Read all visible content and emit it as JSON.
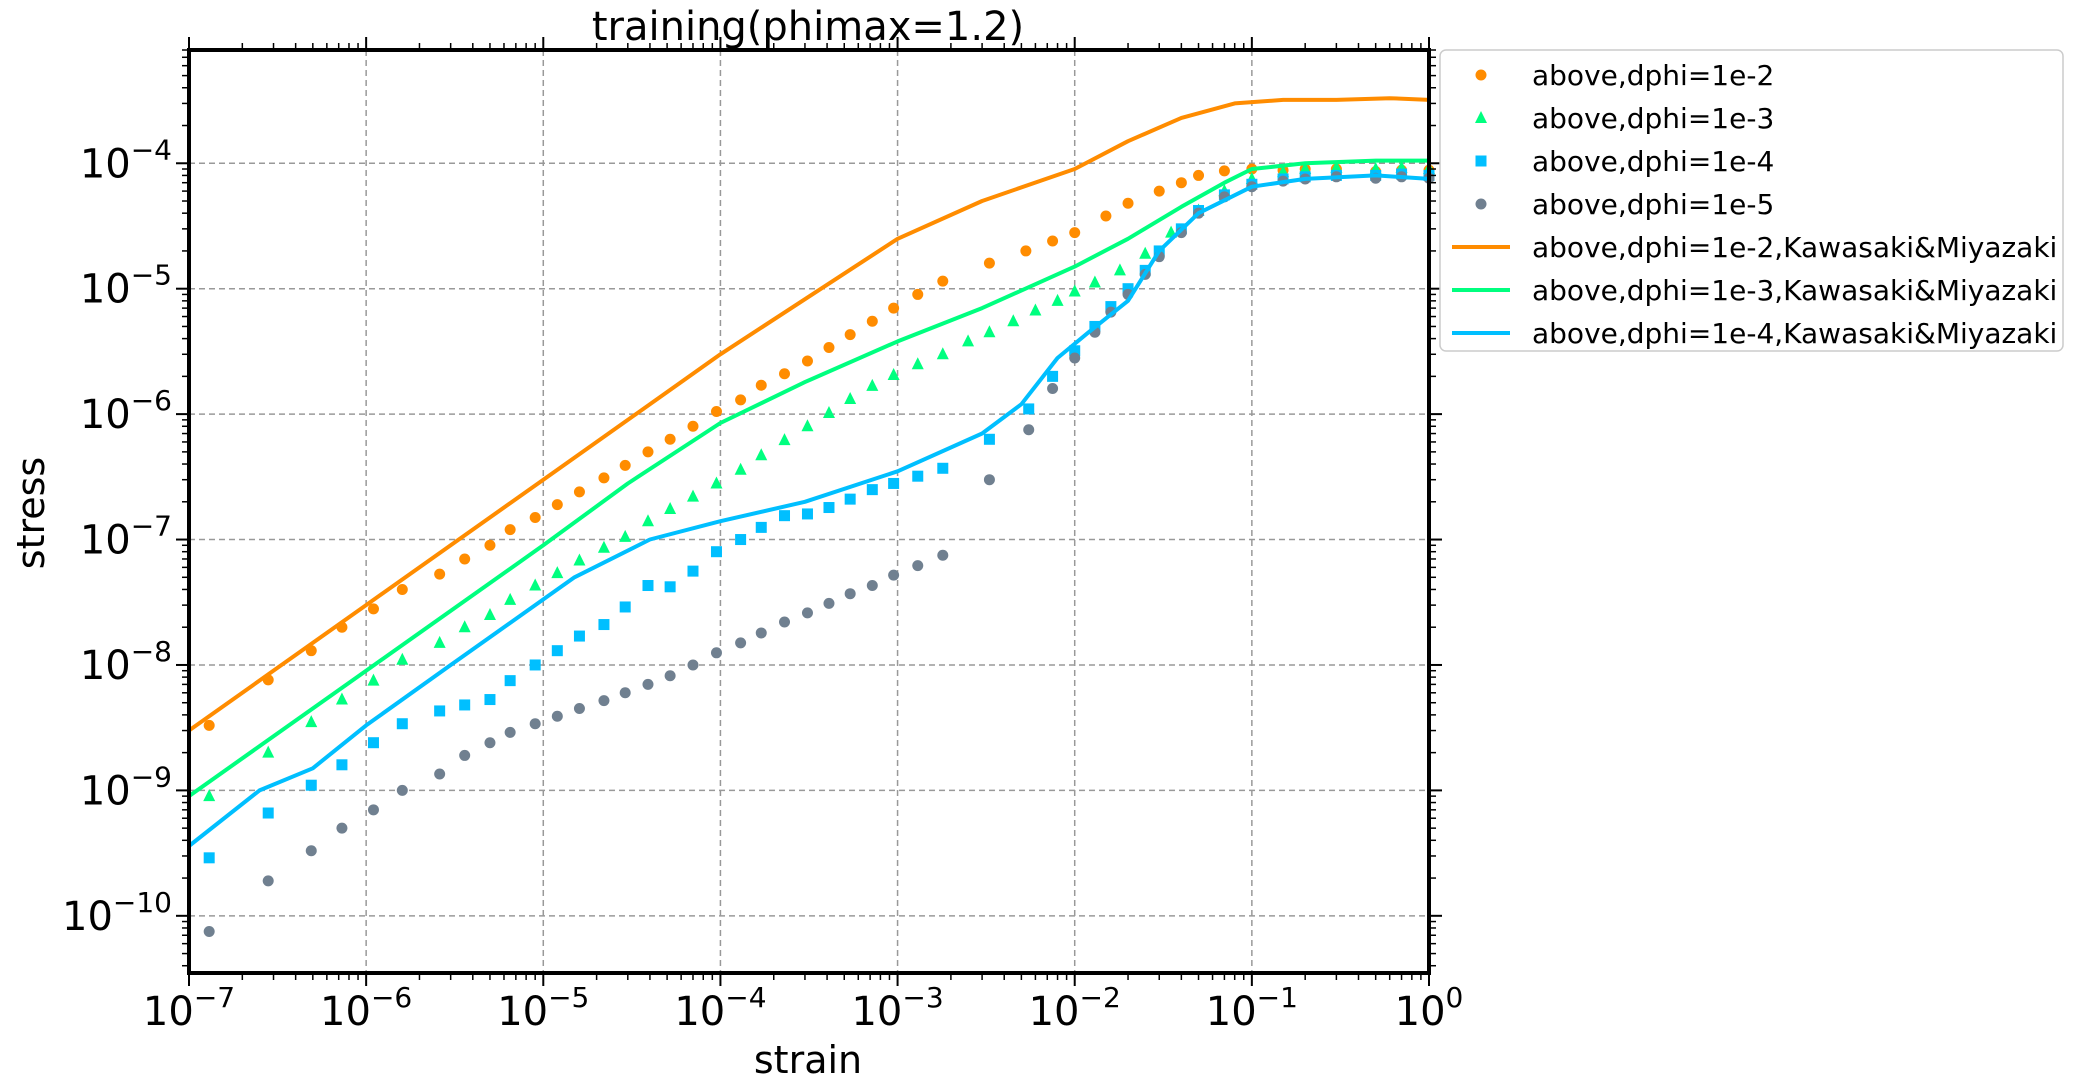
{
  "chart_data": {
    "type": "scatter",
    "title": "training(phimax=1.2)",
    "xlabel": "strain",
    "ylabel": "stress",
    "xscale": "log",
    "yscale": "log",
    "xlim": [
      1e-07,
      1
    ],
    "ylim": [
      3.5e-11,
      0.0008
    ],
    "grid": true,
    "legend_position": "outside-right",
    "x_tick_labels": [
      {
        "base": "10",
        "exp": "−7",
        "value": 1e-07
      },
      {
        "base": "10",
        "exp": "−6",
        "value": 1e-06
      },
      {
        "base": "10",
        "exp": "−5",
        "value": 1e-05
      },
      {
        "base": "10",
        "exp": "−4",
        "value": 0.0001
      },
      {
        "base": "10",
        "exp": "−3",
        "value": 0.001
      },
      {
        "base": "10",
        "exp": "−2",
        "value": 0.01
      },
      {
        "base": "10",
        "exp": "−1",
        "value": 0.1
      },
      {
        "base": "10",
        "exp": "0",
        "value": 1
      }
    ],
    "y_tick_labels": [
      {
        "base": "10",
        "exp": "−10",
        "value": 1e-10
      },
      {
        "base": "10",
        "exp": "−9",
        "value": 1e-09
      },
      {
        "base": "10",
        "exp": "−8",
        "value": 1e-08
      },
      {
        "base": "10",
        "exp": "−7",
        "value": 1e-07
      },
      {
        "base": "10",
        "exp": "−6",
        "value": 1e-06
      },
      {
        "base": "10",
        "exp": "−5",
        "value": 1e-05
      },
      {
        "base": "10",
        "exp": "−4",
        "value": 0.0001
      }
    ],
    "series": [
      {
        "name": "above,dphi=1e-2",
        "kind": "scatter",
        "marker": "circle",
        "color": "#ff8c00",
        "points": [
          [
            1.3e-07,
            3.3e-09
          ],
          [
            2.8e-07,
            7.6e-09
          ],
          [
            4.9e-07,
            1.3e-08
          ],
          [
            7.3e-07,
            2e-08
          ],
          [
            1.1e-06,
            2.8e-08
          ],
          [
            1.6e-06,
            4e-08
          ],
          [
            2.6e-06,
            5.3e-08
          ],
          [
            3.6e-06,
            7e-08
          ],
          [
            5e-06,
            9e-08
          ],
          [
            6.5e-06,
            1.2e-07
          ],
          [
            9e-06,
            1.5e-07
          ],
          [
            1.2e-05,
            1.9e-07
          ],
          [
            1.6e-05,
            2.4e-07
          ],
          [
            2.2e-05,
            3.1e-07
          ],
          [
            2.9e-05,
            3.9e-07
          ],
          [
            3.9e-05,
            5e-07
          ],
          [
            5.2e-05,
            6.3e-07
          ],
          [
            7e-05,
            8e-07
          ],
          [
            9.5e-05,
            1.05e-06
          ],
          [
            0.00013,
            1.3e-06
          ],
          [
            0.00017,
            1.7e-06
          ],
          [
            0.00023,
            2.1e-06
          ],
          [
            0.00031,
            2.65e-06
          ],
          [
            0.00041,
            3.4e-06
          ],
          [
            0.00054,
            4.3e-06
          ],
          [
            0.00072,
            5.5e-06
          ],
          [
            0.00095,
            7e-06
          ],
          [
            0.0013,
            9e-06
          ],
          [
            0.0018,
            1.15e-05
          ],
          [
            0.0033,
            1.6e-05
          ],
          [
            0.0053,
            2e-05
          ],
          [
            0.0075,
            2.4e-05
          ],
          [
            0.01,
            2.8e-05
          ],
          [
            0.015,
            3.8e-05
          ],
          [
            0.02,
            4.8e-05
          ],
          [
            0.03,
            6e-05
          ],
          [
            0.04,
            7e-05
          ],
          [
            0.05,
            8e-05
          ],
          [
            0.07,
            8.7e-05
          ],
          [
            0.1,
            9e-05
          ],
          [
            0.15,
            8.8e-05
          ],
          [
            0.2,
            9e-05
          ],
          [
            0.3,
            9e-05
          ],
          [
            0.5,
            8.6e-05
          ],
          [
            0.7,
            8.8e-05
          ],
          [
            1,
            8.8e-05
          ]
        ]
      },
      {
        "name": "above,dphi=1e-3",
        "kind": "scatter",
        "marker": "triangle",
        "color": "#00ff7f",
        "points": [
          [
            1.3e-07,
            9e-10
          ],
          [
            2.8e-07,
            2e-09
          ],
          [
            4.9e-07,
            3.5e-09
          ],
          [
            7.3e-07,
            5.3e-09
          ],
          [
            1.1e-06,
            7.5e-09
          ],
          [
            1.6e-06,
            1.1e-08
          ],
          [
            2.6e-06,
            1.5e-08
          ],
          [
            3.6e-06,
            2e-08
          ],
          [
            5e-06,
            2.5e-08
          ],
          [
            6.5e-06,
            3.3e-08
          ],
          [
            9e-06,
            4.3e-08
          ],
          [
            1.2e-05,
            5.4e-08
          ],
          [
            1.6e-05,
            6.8e-08
          ],
          [
            2.2e-05,
            8.6e-08
          ],
          [
            2.9e-05,
            1.05e-07
          ],
          [
            3.9e-05,
            1.4e-07
          ],
          [
            5.2e-05,
            1.75e-07
          ],
          [
            7e-05,
            2.2e-07
          ],
          [
            9.5e-05,
            2.8e-07
          ],
          [
            0.00013,
            3.6e-07
          ],
          [
            0.00017,
            4.7e-07
          ],
          [
            0.00023,
            6.2e-07
          ],
          [
            0.00031,
            8e-07
          ],
          [
            0.00041,
            1.02e-06
          ],
          [
            0.00054,
            1.32e-06
          ],
          [
            0.00072,
            1.68e-06
          ],
          [
            0.00095,
            2.05e-06
          ],
          [
            0.0013,
            2.5e-06
          ],
          [
            0.0018,
            3e-06
          ],
          [
            0.0025,
            3.8e-06
          ],
          [
            0.0033,
            4.5e-06
          ],
          [
            0.0045,
            5.5e-06
          ],
          [
            0.006,
            6.7e-06
          ],
          [
            0.008,
            8e-06
          ],
          [
            0.01,
            9.5e-06
          ],
          [
            0.013,
            1.12e-05
          ],
          [
            0.018,
            1.4e-05
          ],
          [
            0.025,
            1.9e-05
          ],
          [
            0.035,
            2.8e-05
          ],
          [
            0.05,
            4.2e-05
          ],
          [
            0.07,
            6e-05
          ],
          [
            0.1,
            7.5e-05
          ],
          [
            0.15,
            8.5e-05
          ],
          [
            0.2,
            9e-05
          ],
          [
            0.3,
            9.2e-05
          ],
          [
            0.5,
            9e-05
          ],
          [
            0.7,
            9.2e-05
          ],
          [
            1,
            9e-05
          ]
        ]
      },
      {
        "name": "above,dphi=1e-4",
        "kind": "scatter",
        "marker": "square",
        "color": "#00bfff",
        "points": [
          [
            1.3e-07,
            2.9e-10
          ],
          [
            2.8e-07,
            6.6e-10
          ],
          [
            4.9e-07,
            1.1e-09
          ],
          [
            7.3e-07,
            1.6e-09
          ],
          [
            1.1e-06,
            2.4e-09
          ],
          [
            1.6e-06,
            3.4e-09
          ],
          [
            2.6e-06,
            4.3e-09
          ],
          [
            3.6e-06,
            4.8e-09
          ],
          [
            5e-06,
            5.3e-09
          ],
          [
            6.5e-06,
            7.5e-09
          ],
          [
            9e-06,
            1e-08
          ],
          [
            1.2e-05,
            1.3e-08
          ],
          [
            1.6e-05,
            1.7e-08
          ],
          [
            2.2e-05,
            2.1e-08
          ],
          [
            2.9e-05,
            2.9e-08
          ],
          [
            3.9e-05,
            4.3e-08
          ],
          [
            5.2e-05,
            4.2e-08
          ],
          [
            7e-05,
            5.6e-08
          ],
          [
            9.5e-05,
            8e-08
          ],
          [
            0.00013,
            1e-07
          ],
          [
            0.00017,
            1.25e-07
          ],
          [
            0.00023,
            1.55e-07
          ],
          [
            0.00031,
            1.6e-07
          ],
          [
            0.00041,
            1.8e-07
          ],
          [
            0.00054,
            2.1e-07
          ],
          [
            0.00072,
            2.5e-07
          ],
          [
            0.00095,
            2.8e-07
          ],
          [
            0.0013,
            3.2e-07
          ],
          [
            0.0018,
            3.7e-07
          ],
          [
            0.0033,
            6.3e-07
          ],
          [
            0.0055,
            1.1e-06
          ],
          [
            0.0075,
            2e-06
          ],
          [
            0.01,
            3.2e-06
          ],
          [
            0.013,
            5e-06
          ],
          [
            0.016,
            7.2e-06
          ],
          [
            0.02,
            1e-05
          ],
          [
            0.025,
            1.4e-05
          ],
          [
            0.03,
            2e-05
          ],
          [
            0.04,
            3e-05
          ],
          [
            0.05,
            4.2e-05
          ],
          [
            0.07,
            5.6e-05
          ],
          [
            0.1,
            6.8e-05
          ],
          [
            0.15,
            7.5e-05
          ],
          [
            0.2,
            7.8e-05
          ],
          [
            0.3,
            8e-05
          ],
          [
            0.5,
            8e-05
          ],
          [
            0.7,
            8.2e-05
          ],
          [
            1,
            8e-05
          ]
        ]
      },
      {
        "name": "above,dphi=1e-5",
        "kind": "scatter",
        "marker": "circle",
        "color": "#708090",
        "points": [
          [
            1.3e-07,
            7.5e-11
          ],
          [
            2.8e-07,
            1.9e-10
          ],
          [
            4.9e-07,
            3.3e-10
          ],
          [
            7.3e-07,
            5e-10
          ],
          [
            1.1e-06,
            7e-10
          ],
          [
            1.6e-06,
            1e-09
          ],
          [
            2.6e-06,
            1.35e-09
          ],
          [
            3.6e-06,
            1.9e-09
          ],
          [
            5e-06,
            2.4e-09
          ],
          [
            6.5e-06,
            2.9e-09
          ],
          [
            9e-06,
            3.4e-09
          ],
          [
            1.2e-05,
            3.9e-09
          ],
          [
            1.6e-05,
            4.5e-09
          ],
          [
            2.2e-05,
            5.2e-09
          ],
          [
            2.9e-05,
            6e-09
          ],
          [
            3.9e-05,
            7e-09
          ],
          [
            5.2e-05,
            8.2e-09
          ],
          [
            7e-05,
            1e-08
          ],
          [
            9.5e-05,
            1.25e-08
          ],
          [
            0.00013,
            1.5e-08
          ],
          [
            0.00017,
            1.8e-08
          ],
          [
            0.00023,
            2.2e-08
          ],
          [
            0.00031,
            2.6e-08
          ],
          [
            0.00041,
            3.1e-08
          ],
          [
            0.00054,
            3.7e-08
          ],
          [
            0.00072,
            4.3e-08
          ],
          [
            0.00095,
            5.2e-08
          ],
          [
            0.0013,
            6.2e-08
          ],
          [
            0.0018,
            7.5e-08
          ],
          [
            0.0033,
            3e-07
          ],
          [
            0.0055,
            7.5e-07
          ],
          [
            0.0075,
            1.6e-06
          ],
          [
            0.01,
            2.8e-06
          ],
          [
            0.013,
            4.5e-06
          ],
          [
            0.016,
            6.5e-06
          ],
          [
            0.02,
            9e-06
          ],
          [
            0.025,
            1.3e-05
          ],
          [
            0.03,
            1.8e-05
          ],
          [
            0.04,
            2.8e-05
          ],
          [
            0.05,
            4e-05
          ],
          [
            0.07,
            5.4e-05
          ],
          [
            0.1,
            6.5e-05
          ],
          [
            0.15,
            7.2e-05
          ],
          [
            0.2,
            7.5e-05
          ],
          [
            0.3,
            7.8e-05
          ],
          [
            0.5,
            7.6e-05
          ],
          [
            0.7,
            7.8e-05
          ],
          [
            1,
            7.6e-05
          ]
        ]
      },
      {
        "name": "above,dphi=1e-2,Kawasaki&Miyazaki",
        "kind": "line",
        "color": "#ff8c00",
        "points": [
          [
            1e-07,
            3e-09
          ],
          [
            1e-06,
            3e-08
          ],
          [
            1e-05,
            3e-07
          ],
          [
            0.0001,
            3e-06
          ],
          [
            0.001,
            2.5e-05
          ],
          [
            0.003,
            5e-05
          ],
          [
            0.01,
            9e-05
          ],
          [
            0.02,
            0.00015
          ],
          [
            0.04,
            0.00023
          ],
          [
            0.08,
            0.0003
          ],
          [
            0.15,
            0.00032
          ],
          [
            0.3,
            0.00032
          ],
          [
            0.6,
            0.00033
          ],
          [
            1,
            0.00032
          ]
        ]
      },
      {
        "name": "above,dphi=1e-3,Kawasaki&Miyazaki",
        "kind": "line",
        "color": "#00ff7f",
        "points": [
          [
            1e-07,
            9e-10
          ],
          [
            1e-06,
            9e-09
          ],
          [
            1e-05,
            9e-08
          ],
          [
            3e-05,
            2.8e-07
          ],
          [
            0.0001,
            8.5e-07
          ],
          [
            0.0003,
            1.8e-06
          ],
          [
            0.001,
            3.8e-06
          ],
          [
            0.003,
            7e-06
          ],
          [
            0.01,
            1.5e-05
          ],
          [
            0.02,
            2.5e-05
          ],
          [
            0.04,
            4.5e-05
          ],
          [
            0.07,
            7e-05
          ],
          [
            0.1,
            9e-05
          ],
          [
            0.2,
            0.0001
          ],
          [
            0.5,
            0.000105
          ],
          [
            1,
            0.000105
          ]
        ]
      },
      {
        "name": "above,dphi=1e-4,Kawasaki&Miyazaki",
        "kind": "line",
        "color": "#00bfff",
        "points": [
          [
            1e-07,
            3.6e-10
          ],
          [
            2.5e-07,
            1e-09
          ],
          [
            5e-07,
            1.5e-09
          ],
          [
            1e-06,
            3.3e-09
          ],
          [
            3e-06,
            1e-08
          ],
          [
            1.5e-05,
            5e-08
          ],
          [
            4e-05,
            1e-07
          ],
          [
            0.0001,
            1.4e-07
          ],
          [
            0.0003,
            2e-07
          ],
          [
            0.001,
            3.5e-07
          ],
          [
            0.003,
            7e-07
          ],
          [
            0.005,
            1.2e-06
          ],
          [
            0.008,
            2.8e-06
          ],
          [
            0.012,
            4.5e-06
          ],
          [
            0.02,
            8e-06
          ],
          [
            0.03,
            2e-05
          ],
          [
            0.05,
            4e-05
          ],
          [
            0.1,
            6.5e-05
          ],
          [
            0.2,
            7.5e-05
          ],
          [
            0.5,
            8e-05
          ],
          [
            1,
            7.5e-05
          ]
        ]
      }
    ]
  }
}
